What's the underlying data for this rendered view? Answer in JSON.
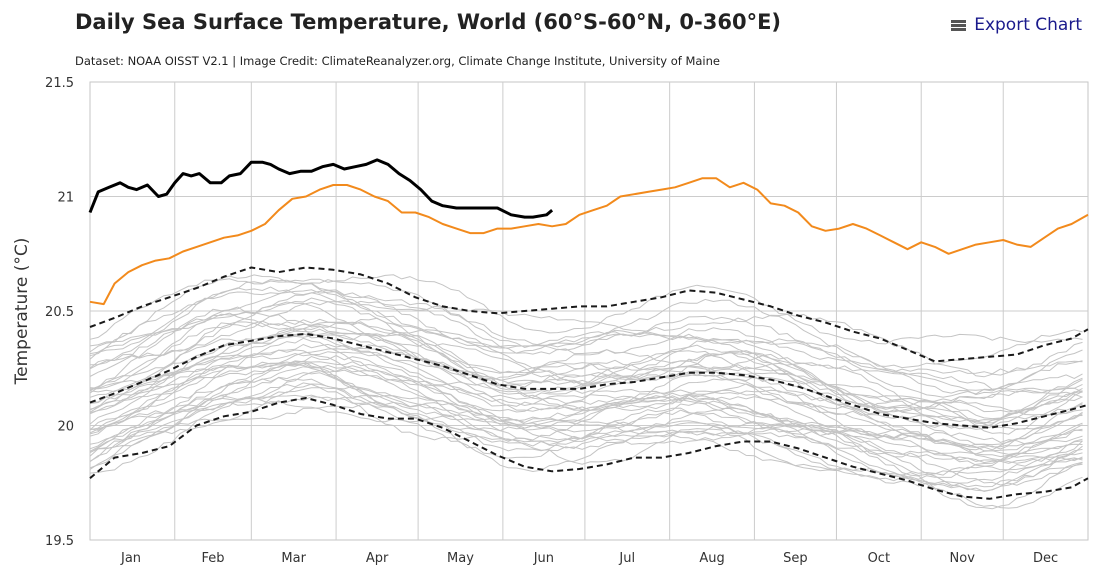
{
  "header": {
    "title": "Daily Sea Surface Temperature, World (60°S-60°N, 0-360°E)",
    "subtitle": "Dataset: NOAA OISST V2.1 | Image Credit: ClimateReanalyzer.org, Climate Change Institute, University of Maine",
    "export_label": "Export Chart",
    "export_icon": "hamburger-menu-icon"
  },
  "chart_data": {
    "type": "line",
    "title": "Daily Sea Surface Temperature, World (60°S-60°N, 0-360°E)",
    "xlabel": "",
    "ylabel": "Temperature (°C)",
    "ylim": [
      19.5,
      21.5
    ],
    "xlim": [
      1,
      366
    ],
    "x_unit": "day of year",
    "grid": true,
    "y_ticks": [
      "19.5",
      "20",
      "20.5",
      "21",
      "21.5"
    ],
    "y_tick_values": [
      19.5,
      20.0,
      20.5,
      21.0,
      21.5
    ],
    "month_labels": [
      "Jan",
      "Feb",
      "Mar",
      "Apr",
      "May",
      "Jun",
      "Jul",
      "Aug",
      "Sep",
      "Oct",
      "Nov",
      "Dec"
    ],
    "month_gridlines_day": [
      32,
      60,
      91,
      121,
      152,
      182,
      213,
      244,
      274,
      305,
      335
    ],
    "month_label_day": [
      16,
      46,
      75.5,
      106,
      136.5,
      167,
      197.5,
      228.5,
      259,
      289.5,
      320,
      350.5
    ],
    "colors": {
      "current_year": "#000000",
      "previous_year": "#f28a1c",
      "historical": "#c4c4c4",
      "bounds": "#1a1a1a"
    },
    "series": [
      {
        "style": "current-year",
        "x": [
          1,
          4,
          8,
          12,
          15,
          18,
          22,
          26,
          29,
          32,
          35,
          38,
          41,
          45,
          49,
          52,
          56,
          60,
          64,
          67,
          70,
          74,
          78,
          82,
          86,
          90,
          94,
          98,
          102,
          106,
          110,
          114,
          118,
          122,
          126,
          130,
          135,
          140,
          145,
          150,
          155,
          160,
          163,
          168,
          170
        ],
        "y": [
          20.93,
          21.02,
          21.04,
          21.06,
          21.04,
          21.03,
          21.05,
          21.0,
          21.01,
          21.06,
          21.1,
          21.09,
          21.1,
          21.06,
          21.06,
          21.09,
          21.1,
          21.15,
          21.15,
          21.14,
          21.12,
          21.1,
          21.11,
          21.11,
          21.13,
          21.14,
          21.12,
          21.13,
          21.14,
          21.16,
          21.14,
          21.1,
          21.07,
          21.03,
          20.98,
          20.96,
          20.95,
          20.95,
          20.95,
          20.95,
          20.92,
          20.91,
          20.91,
          20.92,
          20.94
        ]
      },
      {
        "style": "previous-year",
        "x": [
          1,
          6,
          10,
          15,
          20,
          25,
          30,
          35,
          40,
          45,
          50,
          55,
          60,
          65,
          70,
          75,
          80,
          85,
          90,
          95,
          100,
          105,
          110,
          115,
          120,
          125,
          130,
          135,
          140,
          145,
          150,
          155,
          160,
          165,
          170,
          175,
          180,
          185,
          190,
          195,
          200,
          205,
          210,
          215,
          220,
          225,
          230,
          235,
          240,
          245,
          250,
          255,
          260,
          265,
          270,
          275,
          280,
          285,
          290,
          295,
          300,
          305,
          310,
          315,
          320,
          325,
          330,
          335,
          340,
          345,
          350,
          355,
          360,
          366
        ],
        "y": [
          20.54,
          20.53,
          20.62,
          20.67,
          20.7,
          20.72,
          20.73,
          20.76,
          20.78,
          20.8,
          20.82,
          20.83,
          20.85,
          20.88,
          20.94,
          20.99,
          21.0,
          21.03,
          21.05,
          21.05,
          21.03,
          21.0,
          20.98,
          20.93,
          20.93,
          20.91,
          20.88,
          20.86,
          20.84,
          20.84,
          20.86,
          20.86,
          20.87,
          20.88,
          20.87,
          20.88,
          20.92,
          20.94,
          20.96,
          21.0,
          21.01,
          21.02,
          21.03,
          21.04,
          21.06,
          21.08,
          21.08,
          21.04,
          21.06,
          21.03,
          20.97,
          20.96,
          20.93,
          20.87,
          20.85,
          20.86,
          20.88,
          20.86,
          20.83,
          20.8,
          20.77,
          20.8,
          20.78,
          20.75,
          20.77,
          20.79,
          20.8,
          20.81,
          20.79,
          20.78,
          20.82,
          20.86,
          20.88,
          20.92
        ]
      },
      {
        "style": "upper-bound",
        "x": [
          1,
          10,
          20,
          30,
          40,
          50,
          60,
          70,
          80,
          90,
          100,
          110,
          120,
          130,
          140,
          150,
          160,
          170,
          180,
          190,
          200,
          210,
          220,
          230,
          240,
          250,
          260,
          270,
          280,
          290,
          300,
          310,
          320,
          330,
          340,
          350,
          360,
          366
        ],
        "y": [
          20.43,
          20.47,
          20.52,
          20.56,
          20.6,
          20.65,
          20.69,
          20.67,
          20.69,
          20.68,
          20.66,
          20.62,
          20.56,
          20.52,
          20.5,
          20.49,
          20.5,
          20.51,
          20.52,
          20.52,
          20.54,
          20.56,
          20.59,
          20.58,
          20.55,
          20.52,
          20.48,
          20.45,
          20.41,
          20.38,
          20.33,
          20.28,
          20.29,
          20.3,
          20.31,
          20.35,
          20.38,
          20.42
        ]
      },
      {
        "style": "median",
        "x": [
          1,
          10,
          20,
          30,
          40,
          50,
          60,
          70,
          80,
          90,
          100,
          110,
          120,
          130,
          140,
          150,
          160,
          170,
          180,
          190,
          200,
          210,
          220,
          230,
          240,
          250,
          260,
          270,
          280,
          290,
          300,
          310,
          320,
          330,
          340,
          350,
          360,
          366
        ],
        "y": [
          20.1,
          20.14,
          20.19,
          20.24,
          20.3,
          20.35,
          20.37,
          20.39,
          20.4,
          20.38,
          20.35,
          20.32,
          20.29,
          20.26,
          20.22,
          20.18,
          20.16,
          20.16,
          20.16,
          20.18,
          20.19,
          20.21,
          20.23,
          20.23,
          20.22,
          20.2,
          20.17,
          20.13,
          20.09,
          20.05,
          20.03,
          20.01,
          20.0,
          19.99,
          20.01,
          20.04,
          20.07,
          20.09
        ]
      },
      {
        "style": "lower-bound",
        "x": [
          1,
          10,
          20,
          30,
          40,
          50,
          60,
          70,
          80,
          90,
          100,
          110,
          120,
          130,
          140,
          150,
          160,
          170,
          180,
          190,
          200,
          210,
          220,
          230,
          240,
          250,
          260,
          270,
          280,
          290,
          300,
          310,
          320,
          330,
          340,
          350,
          360,
          366
        ],
        "y": [
          19.77,
          19.86,
          19.88,
          19.91,
          20.0,
          20.04,
          20.06,
          20.1,
          20.12,
          20.09,
          20.05,
          20.03,
          20.03,
          19.99,
          19.93,
          19.87,
          19.82,
          19.8,
          19.81,
          19.83,
          19.86,
          19.86,
          19.88,
          19.91,
          19.93,
          19.93,
          19.9,
          19.86,
          19.82,
          19.79,
          19.76,
          19.72,
          19.69,
          19.68,
          19.7,
          19.71,
          19.73,
          19.77
        ]
      }
    ]
  }
}
